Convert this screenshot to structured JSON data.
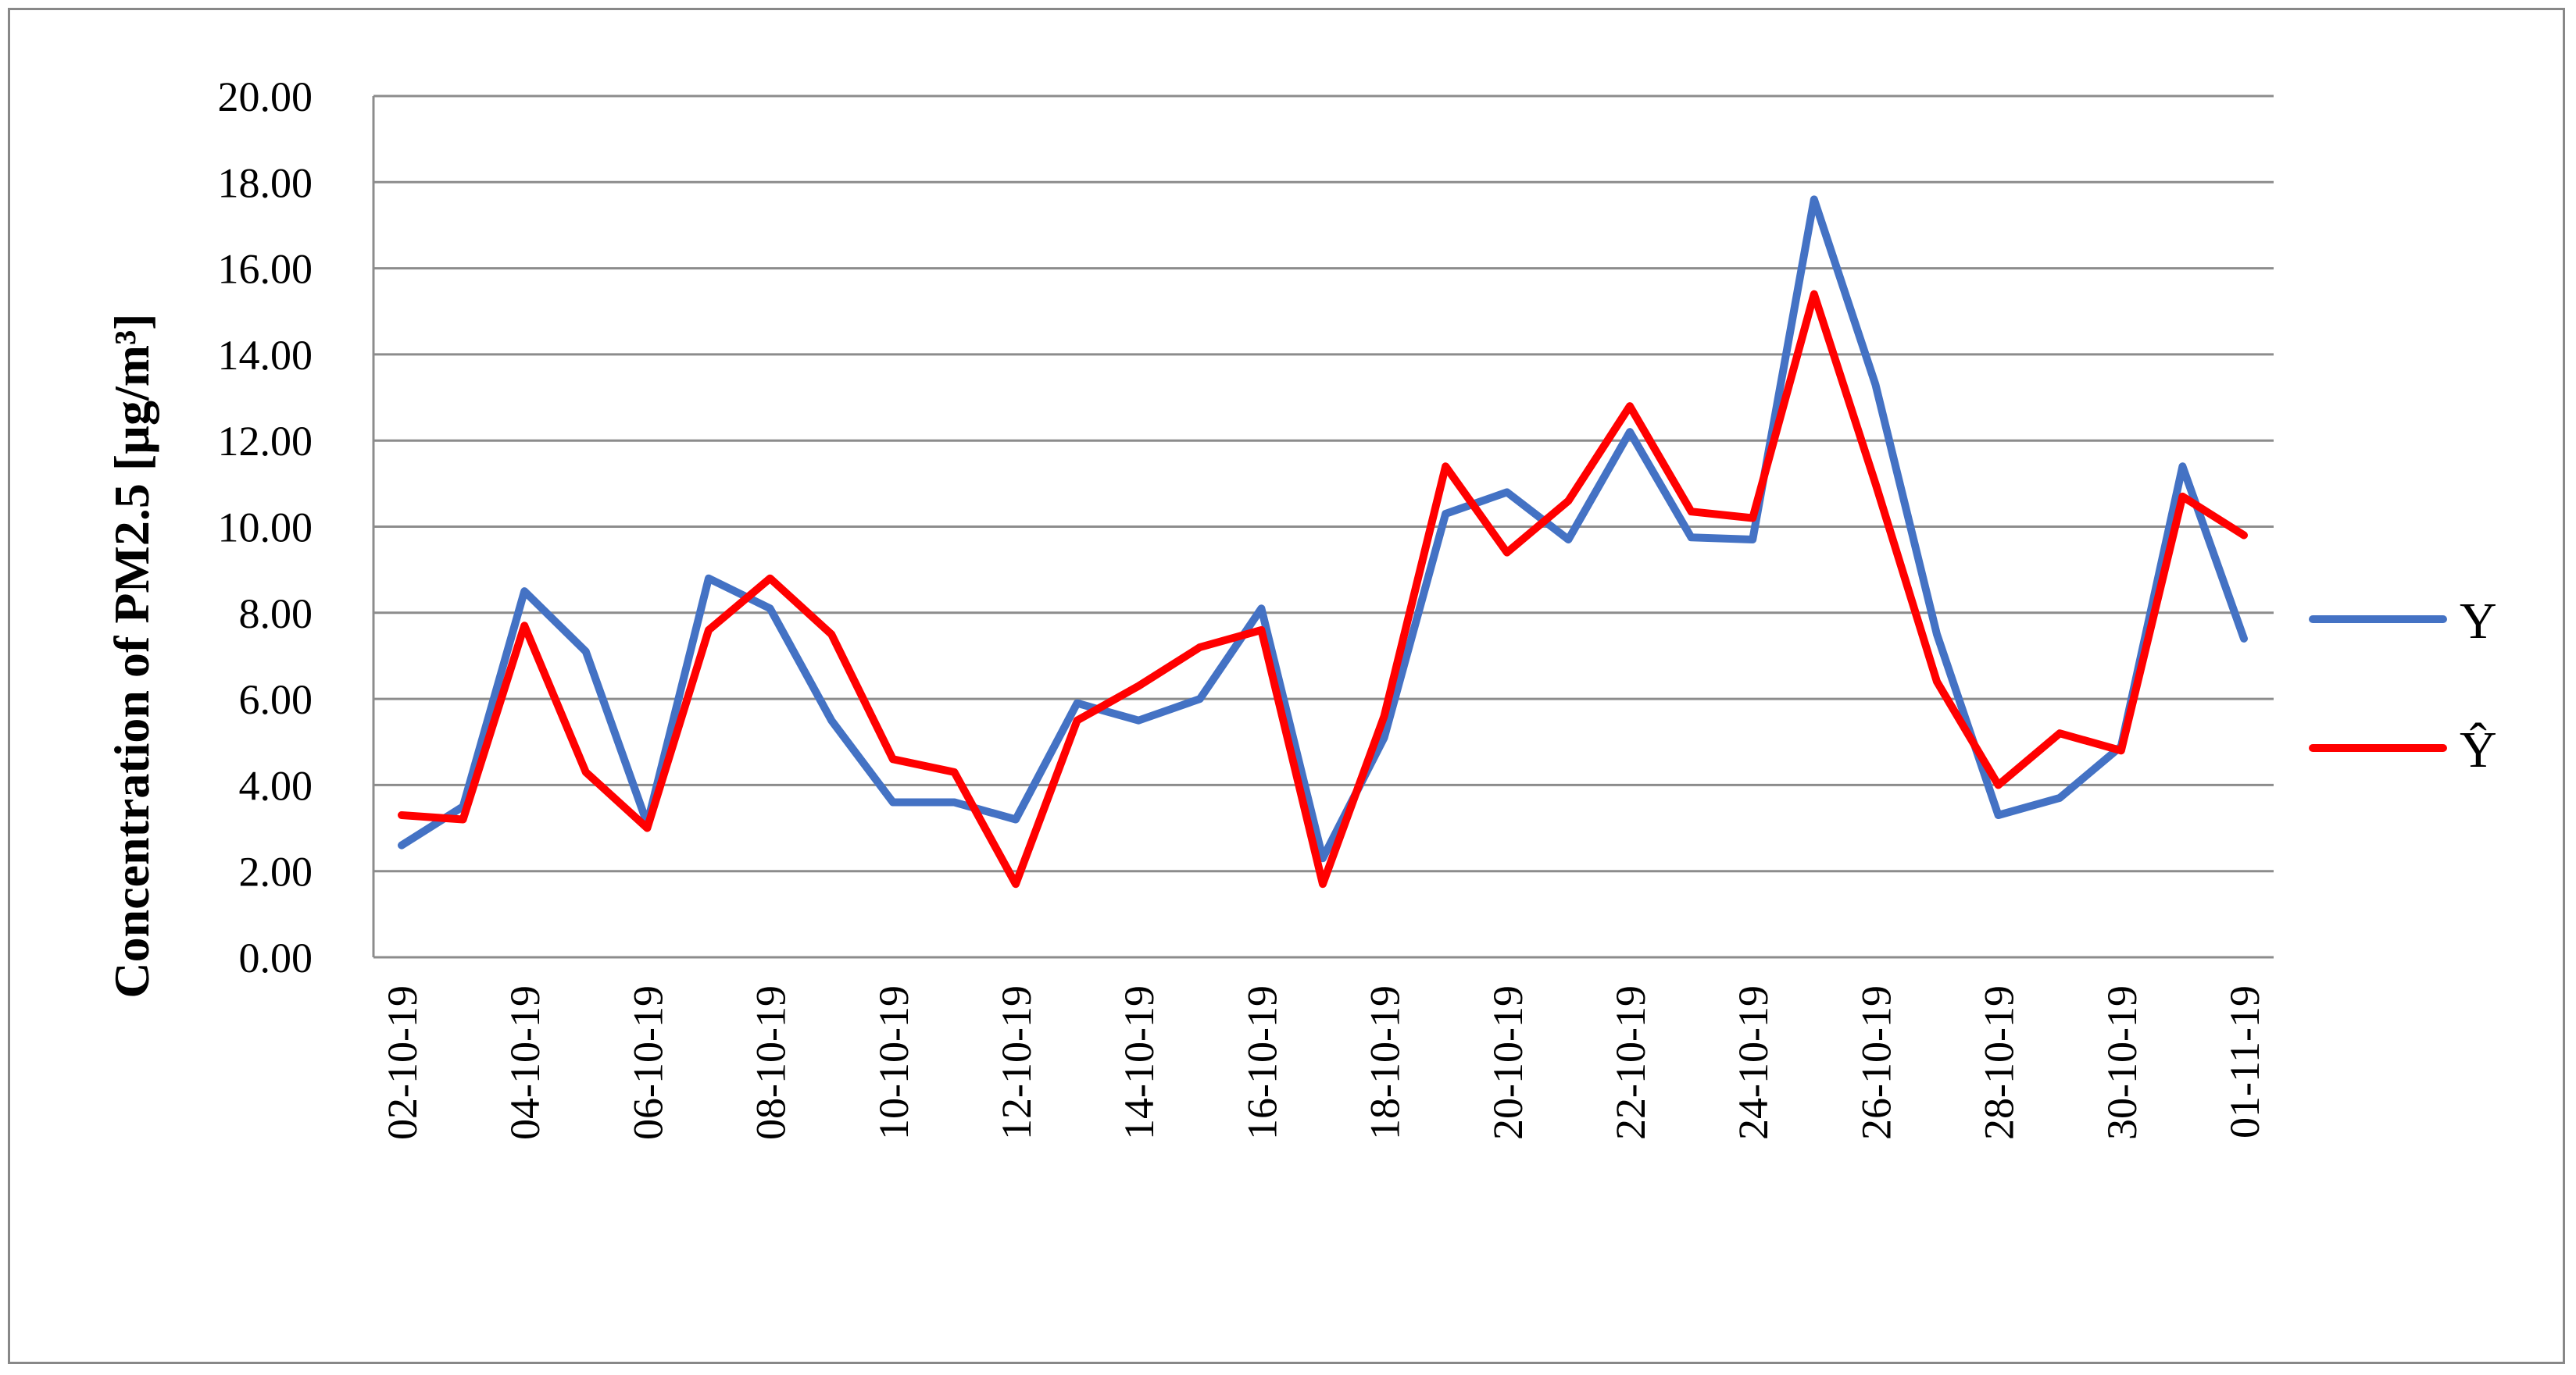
{
  "chart_data": {
    "type": "line",
    "title": "",
    "xlabel": "",
    "ylabel": "Concentration of PM2.5 [µg/m³]",
    "ylim": [
      0,
      20
    ],
    "yticks": [
      "0.00",
      "2.00",
      "4.00",
      "6.00",
      "8.00",
      "10.00",
      "12.00",
      "14.00",
      "16.00",
      "18.00",
      "20.00"
    ],
    "grid": "horizontal",
    "legend_position": "right",
    "categories": [
      "02-10-19",
      "03-10-19",
      "04-10-19",
      "05-10-19",
      "06-10-19",
      "07-10-19",
      "08-10-19",
      "09-10-19",
      "10-10-19",
      "11-10-19",
      "12-10-19",
      "13-10-19",
      "14-10-19",
      "15-10-19",
      "16-10-19",
      "17-10-19",
      "18-10-19",
      "19-10-19",
      "20-10-19",
      "21-10-19",
      "22-10-19",
      "23-10-19",
      "24-10-19",
      "25-10-19",
      "26-10-19",
      "27-10-19",
      "28-10-19",
      "29-10-19",
      "30-10-19",
      "31-10-19",
      "01-11-19"
    ],
    "x_tick_labels": [
      "02-10-19",
      "04-10-19",
      "06-10-19",
      "08-10-19",
      "10-10-19",
      "12-10-19",
      "14-10-19",
      "16-10-19",
      "18-10-19",
      "20-10-19",
      "22-10-19",
      "24-10-19",
      "26-10-19",
      "28-10-19",
      "30-10-19",
      "01-11-19"
    ],
    "series": [
      {
        "name": "Y",
        "color": "#4472C4",
        "values": [
          2.6,
          3.5,
          8.5,
          7.1,
          3.1,
          8.8,
          8.1,
          5.5,
          3.6,
          3.6,
          3.2,
          5.9,
          5.5,
          6.0,
          8.1,
          2.3,
          5.1,
          10.3,
          10.8,
          9.7,
          12.2,
          9.75,
          9.7,
          17.6,
          13.3,
          7.5,
          3.3,
          3.7,
          4.9,
          11.4,
          7.4
        ]
      },
      {
        "name": "Ŷ",
        "color": "#FF0000",
        "values": [
          3.3,
          3.2,
          7.7,
          4.3,
          3.0,
          7.6,
          8.8,
          7.5,
          4.6,
          4.3,
          1.7,
          5.5,
          6.3,
          7.2,
          7.6,
          1.7,
          5.6,
          11.4,
          9.4,
          10.6,
          12.8,
          10.35,
          10.2,
          15.4,
          11.0,
          6.4,
          4.0,
          5.2,
          4.8,
          10.7,
          9.8
        ]
      }
    ]
  }
}
